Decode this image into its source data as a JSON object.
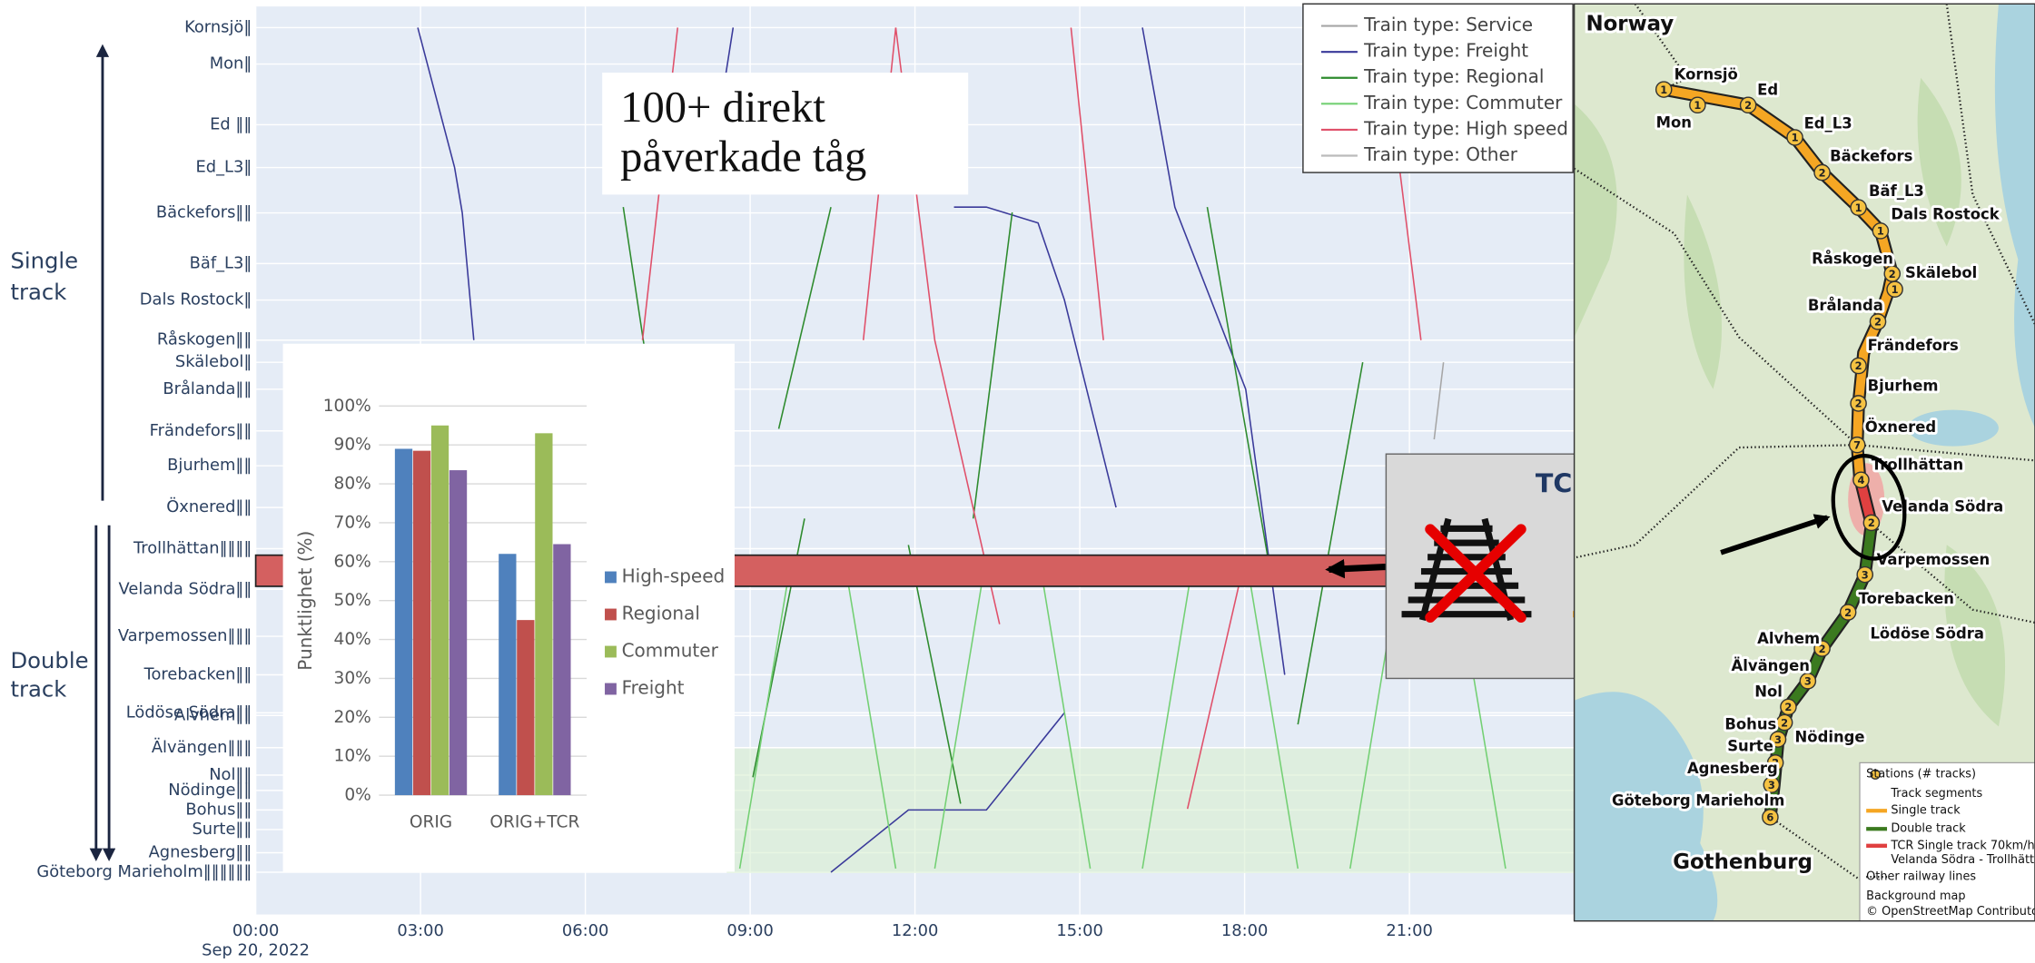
{
  "chart_data": [
    {
      "type": "line",
      "xlim": [
        0,
        24
      ],
      "xticks": [
        {
          "value": 0,
          "label": "00:00"
        },
        {
          "value": 3,
          "label": "03:00"
        },
        {
          "value": 6,
          "label": "06:00"
        },
        {
          "value": 9,
          "label": "09:00"
        },
        {
          "value": 12,
          "label": "12:00"
        },
        {
          "value": 15,
          "label": "15:00"
        },
        {
          "value": 18,
          "label": "18:00"
        },
        {
          "value": 21,
          "label": "21:00"
        }
      ],
      "x_date": "Sep 20, 2022",
      "ylim": [
        -8,
        164
      ],
      "yticks": [
        {
          "value": 160,
          "label": "Kornsjö‖"
        },
        {
          "value": 153.1,
          "label": "Mon‖"
        },
        {
          "value": 141.6,
          "label": "Ed ‖‖"
        },
        {
          "value": 133.5,
          "label": "Ed_L3‖"
        },
        {
          "value": 124.9,
          "label": "Bäckefors‖‖"
        },
        {
          "value": 115.3,
          "label": "Bäf_L3‖"
        },
        {
          "value": 108.4,
          "label": "Dals Rostock‖"
        },
        {
          "value": 100.8,
          "label": "Råskogen‖‖"
        },
        {
          "value": 96.6,
          "label": "Skälebol‖"
        },
        {
          "value": 91.5,
          "label": "Brålanda‖‖"
        },
        {
          "value": 83.6,
          "label": "Frändefors‖‖"
        },
        {
          "value": 77.0,
          "label": "Bjurhem‖‖"
        },
        {
          "value": 69.1,
          "label": "Öxnered‖‖"
        },
        {
          "value": 61.3,
          "label": "Trollhättan‖‖‖‖"
        },
        {
          "value": 53.6,
          "label": "Velanda Södra‖‖"
        },
        {
          "value": 44.7,
          "label": "Varpemossen‖‖‖"
        },
        {
          "value": 37.4,
          "label": "Torebacken‖‖"
        },
        {
          "value": 30.2,
          "label": "Lödöse Södra‖‖"
        },
        {
          "value": 29.7,
          "label": "Alvhem‖‖"
        },
        {
          "value": 23.6,
          "label": "Älvängen‖‖‖"
        },
        {
          "value": 18.4,
          "label": "Nol‖‖"
        },
        {
          "value": 15.5,
          "label": "Nödinge‖‖"
        },
        {
          "value": 11.8,
          "label": "Bohus‖‖"
        },
        {
          "value": 8.1,
          "label": "Surte‖‖"
        },
        {
          "value": 3.7,
          "label": "Agnesberg‖‖"
        },
        {
          "value": 0,
          "label": "Göteborg Marieholm‖‖‖‖‖‖"
        }
      ],
      "grid": true,
      "legend_position": "top-right",
      "series": [
        {
          "name": "Train type: Service",
          "color": "#a6a6a6",
          "trains": [
            {
              "x": [
                21.45,
                21.62
              ],
              "values": [
                82,
                96.6
              ]
            }
          ]
        },
        {
          "name": "Train type: Freight",
          "color": "#3a3a9a",
          "trains": [
            {
              "x": [
                2.95,
                3.62,
                3.76,
                3.97
              ],
              "values": [
                160,
                133.5,
                124.9,
                100.8
              ]
            },
            {
              "x": [
                8.29,
                8.69
              ],
              "values": [
                133.5,
                160
              ]
            },
            {
              "x": [
                12.71,
                13.3,
                14.24,
                14.72,
                15.66
              ],
              "values": [
                126,
                126,
                123,
                108.4,
                69.1
              ]
            },
            {
              "x": [
                16.14,
                16.73,
                18.02,
                18.73
              ],
              "values": [
                160,
                126,
                91.5,
                37.4
              ]
            },
            {
              "x": [
                10.47,
                11.88,
                13.3,
                14.72
              ],
              "values": [
                0,
                11.8,
                11.8,
                30.2
              ]
            }
          ]
        },
        {
          "name": "Train type: Regional",
          "color": "#2e8b2e",
          "trains": [
            {
              "x": [
                6.69,
                7.63
              ],
              "values": [
                126,
                61
              ]
            },
            {
              "x": [
                9.52,
                10.47
              ],
              "values": [
                84,
                126
              ]
            },
            {
              "x": [
                13.06,
                13.77
              ],
              "values": [
                67,
                125
              ]
            },
            {
              "x": [
                17.32,
                18.5
              ],
              "values": [
                126,
                55
              ]
            },
            {
              "x": [
                18.97,
                20.15
              ],
              "values": [
                28,
                96.6
              ]
            },
            {
              "x": [
                9.05,
                9.99
              ],
              "values": [
                18,
                67
              ]
            },
            {
              "x": [
                11.88,
                12.83
              ],
              "values": [
                62,
                13
              ]
            }
          ]
        },
        {
          "name": "Train type: Commuter",
          "color": "#74d074",
          "trains": [
            {
              "x": [
                8.81,
                9.76
              ],
              "values": [
                0.7,
                60
              ]
            },
            {
              "x": [
                10.7,
                11.65
              ],
              "values": [
                60,
                0.7
              ]
            },
            {
              "x": [
                12.36,
                13.3
              ],
              "values": [
                0.7,
                60
              ]
            },
            {
              "x": [
                14.25,
                15.19
              ],
              "values": [
                60,
                0.7
              ]
            },
            {
              "x": [
                16.14,
                17.08
              ],
              "values": [
                0.7,
                60
              ]
            },
            {
              "x": [
                18.02,
                18.97
              ],
              "values": [
                60,
                0.7
              ]
            },
            {
              "x": [
                19.92,
                20.86
              ],
              "values": [
                0.7,
                60
              ]
            },
            {
              "x": [
                21.8,
                22.75
              ],
              "values": [
                60,
                0.7
              ]
            }
          ]
        },
        {
          "name": "Train type: High speed",
          "color": "#e0506a",
          "trains": [
            {
              "x": [
                7.04,
                7.68
              ],
              "values": [
                100.8,
                160
              ]
            },
            {
              "x": [
                11.65,
                12.36,
                13.54
              ],
              "values": [
                160,
                100.8,
                47
              ]
            },
            {
              "x": [
                11.06,
                11.65
              ],
              "values": [
                100.8,
                160
              ]
            },
            {
              "x": [
                14.84,
                15.43
              ],
              "values": [
                160,
                100.8
              ]
            },
            {
              "x": [
                20.5,
                21.21
              ],
              "values": [
                160,
                100.8
              ]
            },
            {
              "x": [
                16.96,
                18.02
              ],
              "values": [
                12,
                60
              ]
            }
          ]
        },
        {
          "name": "Train type: Other",
          "color": "#bbbbbb",
          "trains": []
        }
      ]
    },
    {
      "type": "bar",
      "ylabel": "Punktlighet (%)",
      "categories": [
        "ORIG",
        "ORIG+TCR"
      ],
      "ylim": [
        0,
        100
      ],
      "yticks": [
        {
          "value": 0,
          "label": "0%"
        },
        {
          "value": 10,
          "label": "10%"
        },
        {
          "value": 20,
          "label": "20%"
        },
        {
          "value": 30,
          "label": "30%"
        },
        {
          "value": 40,
          "label": "40%"
        },
        {
          "value": 50,
          "label": "50%"
        },
        {
          "value": 60,
          "label": "60%"
        },
        {
          "value": 70,
          "label": "70%"
        },
        {
          "value": 80,
          "label": "80%"
        },
        {
          "value": 90,
          "label": "90%"
        },
        {
          "value": 100,
          "label": "100%"
        }
      ],
      "grid": true,
      "series": [
        {
          "name": "High-speed",
          "color": "#4f81bd",
          "values": [
            89,
            62
          ]
        },
        {
          "name": "Regional",
          "color": "#c0504d",
          "values": [
            88.5,
            45
          ]
        },
        {
          "name": "Commuter",
          "color": "#9bbb59",
          "values": [
            95,
            93
          ]
        },
        {
          "name": "Freight",
          "color": "#8064a2",
          "values": [
            83.5,
            64.5
          ]
        }
      ]
    }
  ],
  "annotations": {
    "impact": [
      "100+ direkt",
      "påverkade tåg"
    ],
    "single_track": [
      "Single",
      "track"
    ],
    "double_track": [
      "Double",
      "track"
    ]
  },
  "tcr": {
    "title": "TCR",
    "speed": "70",
    "unit": "km/h"
  },
  "map": {
    "country": "Norway",
    "city": "Gothenburg",
    "stations": [
      "Kornsjö",
      "Mon",
      "Ed",
      "Ed_L3",
      "Bäckefors",
      "Bäf_L3",
      "Dals Rostock",
      "Råskogen",
      "Skälebol",
      "Brålanda",
      "Frändefors",
      "Bjurhem",
      "Öxnered",
      "Trollhättan",
      "Velanda Södra",
      "Varpemossen",
      "Torebacken",
      "Lödöse Södra",
      "Alvhem",
      "Älvängen",
      "Nol",
      "Bohus",
      "Nödinge",
      "Surte",
      "Agnesberg",
      "Göteborg Marieholm"
    ],
    "markers": [
      "1",
      "1",
      "2",
      "1",
      "2",
      "1",
      "1",
      "2",
      "1",
      "2",
      "2",
      "2",
      "7",
      "4",
      "2",
      "3",
      "2",
      "2",
      "3",
      "2",
      "2",
      "3",
      "2",
      "3",
      "6"
    ],
    "legend": [
      "Stations (# tracks)",
      "Track segments",
      "Single track",
      "Double track",
      "TCR Single track 70km/h:",
      "Velanda Södra - Trollhättan",
      "Other railway lines",
      "Background map",
      "© OpenStreetMap Contributors"
    ]
  }
}
